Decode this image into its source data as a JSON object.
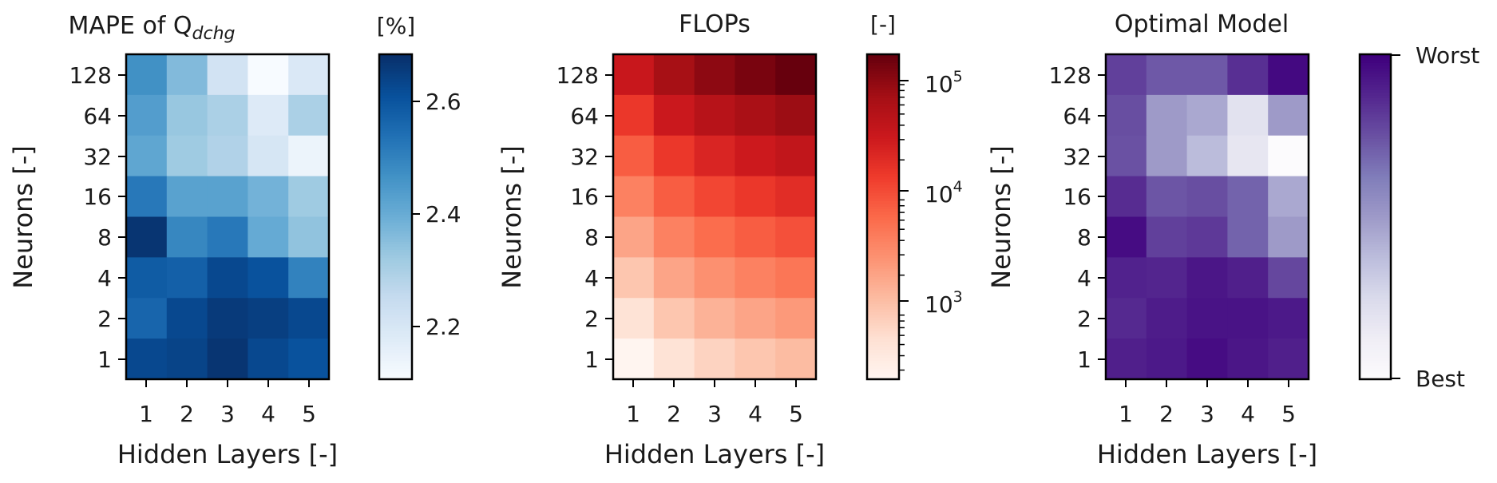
{
  "chart_data": [
    {
      "type": "heatmap",
      "title": "MAPE of Q",
      "title_subscript": "dchg",
      "xlabel": "Hidden Layers [-]",
      "ylabel": "Neurons [-]",
      "x": [
        "1",
        "2",
        "3",
        "4",
        "5"
      ],
      "y": [
        "128",
        "64",
        "32",
        "16",
        "8",
        "4",
        "2",
        "1"
      ],
      "values": [
        [
          2.48,
          2.38,
          2.24,
          2.12,
          2.22
        ],
        [
          2.45,
          2.35,
          2.32,
          2.21,
          2.32
        ],
        [
          2.43,
          2.34,
          2.31,
          2.23,
          2.17
        ],
        [
          2.53,
          2.44,
          2.44,
          2.4,
          2.34
        ],
        [
          2.67,
          2.5,
          2.53,
          2.42,
          2.36
        ],
        [
          2.59,
          2.58,
          2.63,
          2.61,
          2.51
        ],
        [
          2.57,
          2.63,
          2.66,
          2.65,
          2.63
        ],
        [
          2.63,
          2.64,
          2.67,
          2.63,
          2.61
        ]
      ],
      "colormap": "Blues",
      "colorbar": {
        "label": "[%]",
        "range": [
          2.14,
          2.68
        ],
        "ticks": [
          2.2,
          2.4,
          2.6
        ],
        "tick_labels": [
          "2.2",
          "2.4",
          "2.6"
        ],
        "scale": "linear"
      }
    },
    {
      "type": "heatmap",
      "title": "FLOPs",
      "xlabel": "Hidden Layers [-]",
      "ylabel": "Neurons [-]",
      "x": [
        "1",
        "2",
        "3",
        "4",
        "5"
      ],
      "y": [
        "128",
        "64",
        "32",
        "16",
        "8",
        "4",
        "2",
        "1"
      ],
      "values": [
        [
          35000,
          70000,
          100000,
          130000,
          165000
        ],
        [
          16000,
          33000,
          50000,
          66000,
          82000
        ],
        [
          8000,
          16000,
          24000,
          32000,
          40000
        ],
        [
          4000,
          8000,
          12000,
          16000,
          20000
        ],
        [
          2000,
          4000,
          6000,
          8000,
          10000
        ],
        [
          1000,
          2000,
          3000,
          4000,
          5000
        ],
        [
          500,
          1000,
          1500,
          2000,
          2500
        ],
        [
          250,
          500,
          750,
          1000,
          1250
        ]
      ],
      "colormap": "Reds",
      "colorbar": {
        "label": "[-]",
        "range": [
          250,
          165000
        ],
        "ticks": [
          1000,
          10000,
          100000
        ],
        "tick_labels": [
          "10",
          "10",
          "10"
        ],
        "tick_exponents": [
          "3",
          "4",
          "5"
        ],
        "scale": "log"
      }
    },
    {
      "type": "heatmap",
      "title": "Optimal Model",
      "xlabel": "Hidden Layers [-]",
      "ylabel": "Neurons [-]",
      "x": [
        "1",
        "2",
        "3",
        "4",
        "5"
      ],
      "y": [
        "128",
        "64",
        "32",
        "16",
        "8",
        "4",
        "2",
        "1"
      ],
      "values": [
        [
          0.8,
          0.73,
          0.73,
          0.85,
          0.97
        ],
        [
          0.76,
          0.5,
          0.45,
          0.2,
          0.5
        ],
        [
          0.75,
          0.5,
          0.38,
          0.17,
          0.0
        ],
        [
          0.86,
          0.74,
          0.76,
          0.7,
          0.45
        ],
        [
          0.96,
          0.8,
          0.82,
          0.7,
          0.5
        ],
        [
          0.89,
          0.88,
          0.93,
          0.9,
          0.78
        ],
        [
          0.87,
          0.91,
          0.94,
          0.94,
          0.92
        ],
        [
          0.9,
          0.92,
          0.96,
          0.93,
          0.9
        ]
      ],
      "colormap": "Purples",
      "colorbar": {
        "label": "",
        "range": [
          0,
          1
        ],
        "ticks": [
          0,
          1
        ],
        "tick_labels": [
          "Best",
          "Worst"
        ],
        "scale": "linear"
      }
    }
  ]
}
